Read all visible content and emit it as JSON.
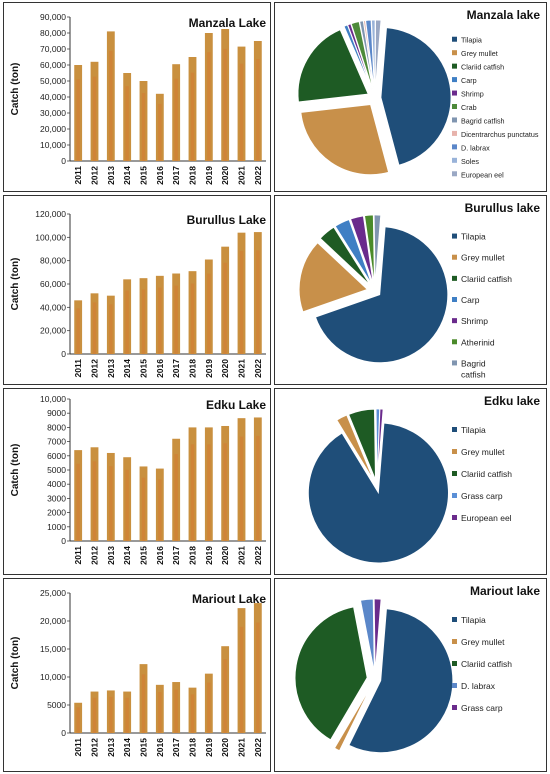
{
  "colors": {
    "tilapia": "#1f4e79",
    "grey_mullet": "#c8904a",
    "clariid_catfish": "#1e5b24",
    "carp": "#3f7fc4",
    "shrimp": "#6a2b8c",
    "crab": "#4d8a3a",
    "bagrid_catfish": "#8095b0",
    "dicentrarchus": "#e7b3ac",
    "d_labrax": "#5b87c9",
    "soles": "#99b3d9",
    "european_eel": "#9aa8c4",
    "atherinid": "#4a8a2a",
    "grass_carp": "#5a8fd6",
    "bar_fill": "#c9903f",
    "bar_inner": "#d9702c"
  },
  "chart_data": [
    {
      "type": "bar",
      "title": "Manzala Lake",
      "ylabel": "Catch (ton)",
      "categories": [
        "2011",
        "2012",
        "2013",
        "2014",
        "2015",
        "2016",
        "2017",
        "2018",
        "2019",
        "2020",
        "2021",
        "2022"
      ],
      "values": [
        60000,
        62000,
        81000,
        55000,
        50000,
        42000,
        60500,
        65000,
        80000,
        82500,
        71500,
        75000
      ],
      "ylim": [
        0,
        90000
      ],
      "yticks": [
        0,
        10000,
        20000,
        30000,
        40000,
        50000,
        60000,
        70000,
        80000,
        90000
      ],
      "ytick_labels": [
        "0",
        "10,000",
        "20,000",
        "30,000",
        "40,000",
        "50,000",
        "60,000",
        "70,000",
        "80,000",
        "90,000"
      ]
    },
    {
      "type": "pie",
      "title": "Manzala lake",
      "labels": [
        "Tilapia",
        "Grey mullet",
        "Clariid catfish",
        "Carp",
        "Shrimp",
        "Crab",
        "Bagrid catfish",
        "Dicentrarchus punctatus",
        "D. labrax",
        "Soles",
        "European eel"
      ],
      "values": [
        44,
        27,
        20,
        0.8,
        0.7,
        1.8,
        0.8,
        0.4,
        1.2,
        0.8,
        1.2
      ],
      "color_keys": [
        "tilapia",
        "grey_mullet",
        "clariid_catfish",
        "carp",
        "shrimp",
        "crab",
        "bagrid_catfish",
        "dicentrarchus",
        "d_labrax",
        "soles",
        "european_eel"
      ],
      "legend_placement": "right"
    },
    {
      "type": "bar",
      "title": "Burullus Lake",
      "ylabel": "Catch (ton)",
      "categories": [
        "2011",
        "2012",
        "2013",
        "2014",
        "2015",
        "2016",
        "2017",
        "2018",
        "2019",
        "2020",
        "2021",
        "2022"
      ],
      "values": [
        46000,
        52000,
        50000,
        64000,
        65000,
        67000,
        69000,
        71000,
        81000,
        92000,
        104000,
        104500
      ],
      "ylim": [
        0,
        120000
      ],
      "yticks": [
        0,
        20000,
        40000,
        60000,
        80000,
        100000,
        120000
      ],
      "ytick_labels": [
        "0",
        "20,000",
        "40,000",
        "60,000",
        "80,000",
        "100,000",
        "120,000"
      ]
    },
    {
      "type": "pie",
      "title": "Burullus lake",
      "labels": [
        "Tilapia",
        "Grey mullet",
        "Clariid catfish",
        "Carp",
        "Shrimp",
        "Atherinid",
        "Bagrid catfish"
      ],
      "values": [
        67,
        17,
        4,
        3.5,
        3,
        2,
        1.5
      ],
      "color_keys": [
        "tilapia",
        "grey_mullet",
        "clariid_catfish",
        "carp",
        "shrimp",
        "atherinid",
        "bagrid_catfish"
      ],
      "legend_placement": "right"
    },
    {
      "type": "bar",
      "title": "Edku Lake",
      "ylabel": "Catch (ton)",
      "categories": [
        "2011",
        "2012",
        "2013",
        "2014",
        "2015",
        "2016",
        "2017",
        "2018",
        "2019",
        "2020",
        "2021",
        "2022"
      ],
      "values": [
        6400,
        6600,
        6200,
        5900,
        5250,
        5100,
        7200,
        8000,
        8000,
        8100,
        8650,
        8700
      ],
      "ylim": [
        0,
        10000
      ],
      "yticks": [
        0,
        1000,
        2000,
        3000,
        4000,
        5000,
        6000,
        7000,
        8000,
        9000,
        10000
      ],
      "ytick_labels": [
        "0",
        "1000",
        "2000",
        "3000",
        "4000",
        "5000",
        "6000",
        "7000",
        "8000",
        "9000",
        "10,000"
      ]
    },
    {
      "type": "pie",
      "title": "Edku lake",
      "labels": [
        "Tilapia",
        "Grey mullet",
        "Clariid catfish",
        "Grass carp",
        "European eel"
      ],
      "values": [
        90,
        2.5,
        6,
        0.8,
        0.7
      ],
      "color_keys": [
        "tilapia",
        "grey_mullet",
        "clariid_catfish",
        "grass_carp",
        "shrimp"
      ],
      "legend_placement": "right"
    },
    {
      "type": "bar",
      "title": "Mariout Lake",
      "ylabel": "Catch (ton)",
      "categories": [
        "2011",
        "2012",
        "2013",
        "2014",
        "2015",
        "2016",
        "2017",
        "2018",
        "2019",
        "2020",
        "2021",
        "2022"
      ],
      "values": [
        5400,
        7400,
        7600,
        7400,
        12300,
        8600,
        9100,
        8100,
        10600,
        15500,
        22300,
        23200
      ],
      "ylim": [
        0,
        25000
      ],
      "yticks": [
        0,
        5000,
        10000,
        15000,
        20000,
        25000
      ],
      "ytick_labels": [
        "0",
        "5000",
        "10,000",
        "15,000",
        "20,000",
        "25,000"
      ]
    },
    {
      "type": "pie",
      "title": "Mariout lake",
      "labels": [
        "Tilapia",
        "Grey mullet",
        "Clariid catfish",
        "D. labrax",
        "Grass carp"
      ],
      "values": [
        56,
        1.2,
        38.5,
        2.8,
        1.5
      ],
      "color_keys": [
        "tilapia",
        "grey_mullet",
        "clariid_catfish",
        "d_labrax",
        "shrimp"
      ],
      "legend_placement": "right"
    }
  ]
}
